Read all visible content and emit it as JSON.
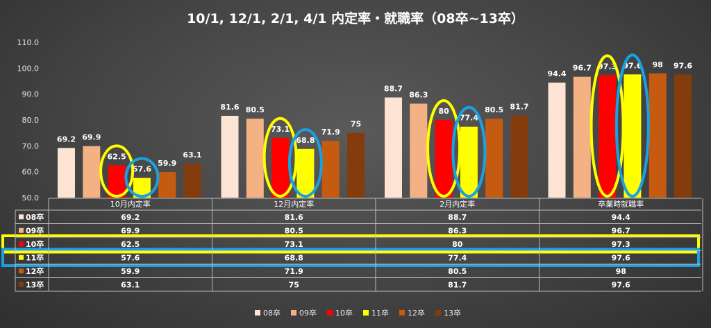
{
  "chart_data": {
    "type": "bar",
    "title": "10/1, 12/1, 2/1, 4/1 内定率・就職率（08卒~13卒）",
    "categories": [
      "10月内定率",
      "12月内定率",
      "2月内定率",
      "卒業時就職率"
    ],
    "series": [
      {
        "name": "08卒",
        "color": "#fde3d4",
        "values": [
          69.2,
          81.6,
          88.7,
          94.4
        ]
      },
      {
        "name": "09卒",
        "color": "#f4b183",
        "values": [
          69.9,
          80.5,
          86.3,
          96.7
        ]
      },
      {
        "name": "10卒",
        "color": "#ff0000",
        "values": [
          62.5,
          73.1,
          80.0,
          97.3
        ]
      },
      {
        "name": "11卒",
        "color": "#ffff00",
        "values": [
          57.6,
          68.8,
          77.4,
          97.6
        ]
      },
      {
        "name": "12卒",
        "color": "#c55a11",
        "values": [
          59.9,
          71.9,
          80.5,
          98.0
        ]
      },
      {
        "name": "13卒",
        "color": "#843c0c",
        "values": [
          63.1,
          75.0,
          81.7,
          97.6
        ]
      }
    ],
    "ylim": [
      50,
      110
    ],
    "yticks": [
      "50.0",
      "60.0",
      "70.0",
      "80.0",
      "90.0",
      "100.0",
      "110.0"
    ],
    "legend": "bottom",
    "data_table": true,
    "highlight": {
      "10卒": {
        "color": "#ffff00"
      },
      "11卒": {
        "color": "#1ba1e2"
      }
    }
  }
}
